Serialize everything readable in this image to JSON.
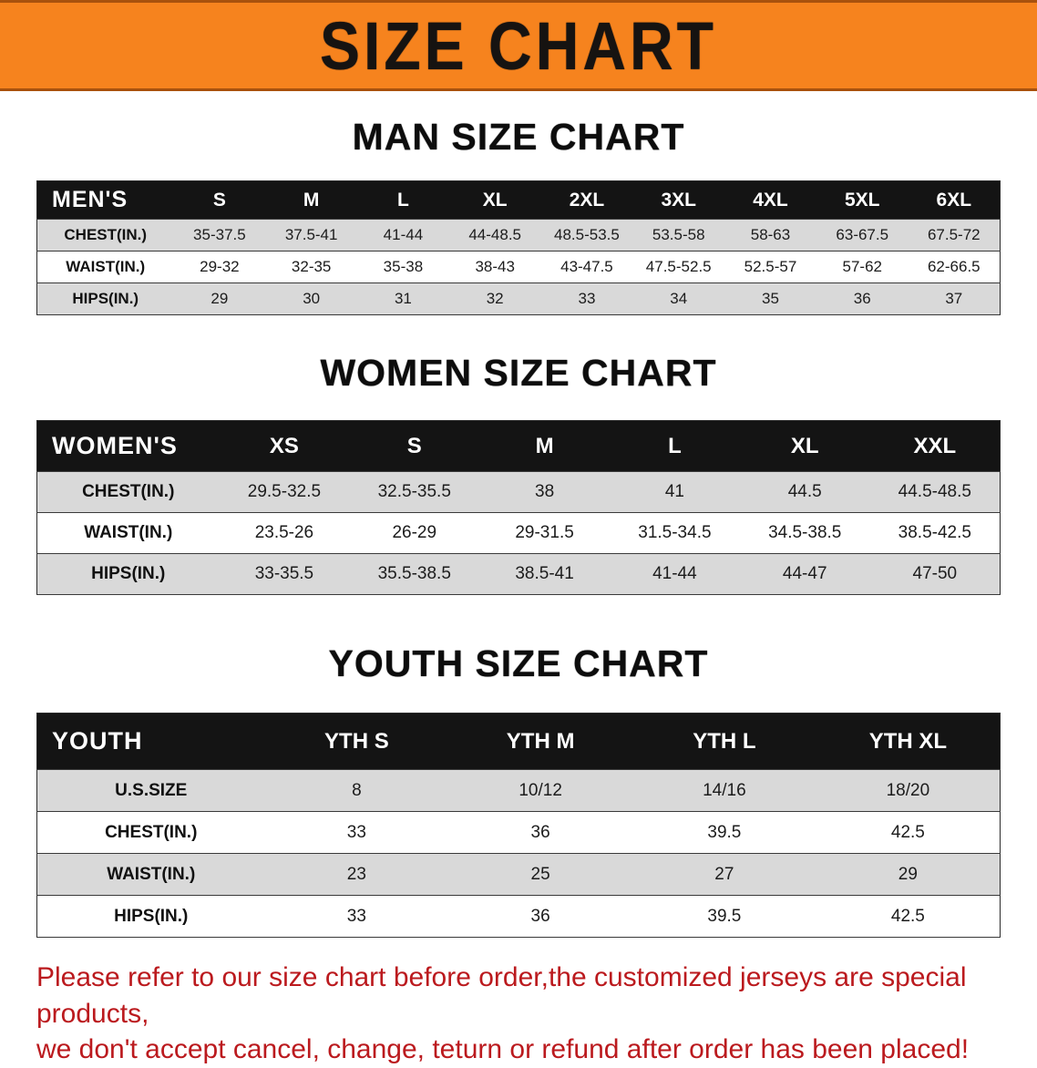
{
  "banner": {
    "title": "SIZE CHART",
    "bg_color": "#f6831e",
    "text_color": "#161311"
  },
  "sections": {
    "men": {
      "heading": "MAN SIZE CHART"
    },
    "women": {
      "heading": "WOMEN SIZE CHART"
    },
    "youth": {
      "heading": "YOUTH SIZE CHART"
    }
  },
  "tables": {
    "men": {
      "header": [
        "MEN'S",
        "S",
        "M",
        "L",
        "XL",
        "2XL",
        "3XL",
        "4XL",
        "5XL",
        "6XL"
      ],
      "rows": [
        {
          "label": "CHEST(IN.)",
          "values": [
            "35-37.5",
            "37.5-41",
            "41-44",
            "44-48.5",
            "48.5-53.5",
            "53.5-58",
            "58-63",
            "63-67.5",
            "67.5-72"
          ]
        },
        {
          "label": "WAIST(IN.)",
          "values": [
            "29-32",
            "32-35",
            "35-38",
            "38-43",
            "43-47.5",
            "47.5-52.5",
            "52.5-57",
            "57-62",
            "62-66.5"
          ]
        },
        {
          "label": "HIPS(IN.)",
          "values": [
            "29",
            "30",
            "31",
            "32",
            "33",
            "34",
            "35",
            "36",
            "37"
          ]
        }
      ]
    },
    "women": {
      "header": [
        "WOMEN'S",
        "XS",
        "S",
        "M",
        "L",
        "XL",
        "XXL"
      ],
      "rows": [
        {
          "label": "CHEST(IN.)",
          "values": [
            "29.5-32.5",
            "32.5-35.5",
            "38",
            "41",
            "44.5",
            "44.5-48.5"
          ]
        },
        {
          "label": "WAIST(IN.)",
          "values": [
            "23.5-26",
            "26-29",
            "29-31.5",
            "31.5-34.5",
            "34.5-38.5",
            "38.5-42.5"
          ]
        },
        {
          "label": "HIPS(IN.)",
          "values": [
            "33-35.5",
            "35.5-38.5",
            "38.5-41",
            "41-44",
            "44-47",
            "47-50"
          ]
        }
      ]
    },
    "youth": {
      "header": [
        "YOUTH",
        "YTH S",
        "YTH M",
        "YTH L",
        "YTH XL"
      ],
      "rows": [
        {
          "label": "U.S.SIZE",
          "values": [
            "8",
            "10/12",
            "14/16",
            "18/20"
          ]
        },
        {
          "label": "CHEST(IN.)",
          "values": [
            "33",
            "36",
            "39.5",
            "42.5"
          ]
        },
        {
          "label": "WAIST(IN.)",
          "values": [
            "23",
            "25",
            "27",
            "29"
          ]
        },
        {
          "label": "HIPS(IN.)",
          "values": [
            "33",
            "36",
            "39.5",
            "42.5"
          ]
        }
      ]
    }
  },
  "footer": {
    "line1": "Please refer to our size chart before order,the customized jerseys are special products,",
    "line2": "we don't accept cancel, change, teturn or refund after order has been placed!",
    "text_color": "#bb1a1e"
  }
}
